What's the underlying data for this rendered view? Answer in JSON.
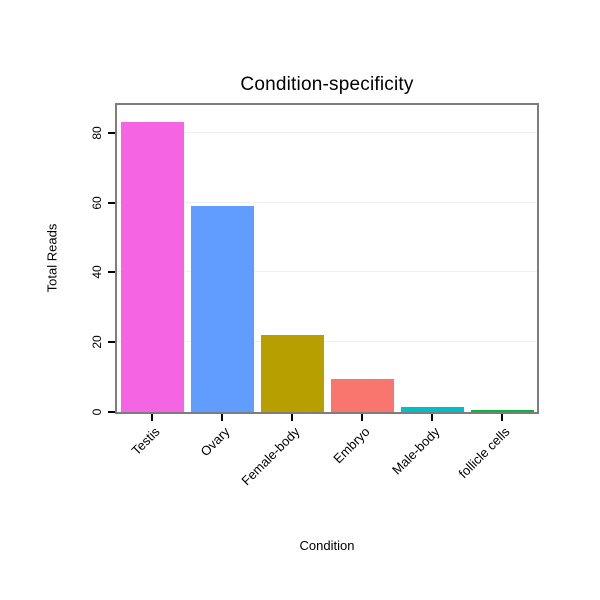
{
  "chart_data": {
    "type": "bar",
    "title": "Condition-specificity",
    "xlabel": "Condition",
    "ylabel": "Total Reads",
    "categories": [
      "Testis",
      "Ovary",
      "Female-body",
      "Embryo",
      "Male-body",
      "follicle cells"
    ],
    "values": [
      83,
      59,
      22,
      9.5,
      1.5,
      0.7
    ],
    "bar_colors": [
      "#F564E3",
      "#619CFF",
      "#B79F00",
      "#F8766D",
      "#00BFC4",
      "#00BA38"
    ],
    "yticks": [
      0,
      20,
      40,
      60,
      80
    ],
    "ylim": [
      0,
      88
    ],
    "grid": "faint horizontal major gridlines",
    "legend": "none",
    "panel_border_color": "#7d7d7d",
    "x_tick_label_rotation_deg": -45,
    "y_tick_label_rotation_deg": -90
  }
}
